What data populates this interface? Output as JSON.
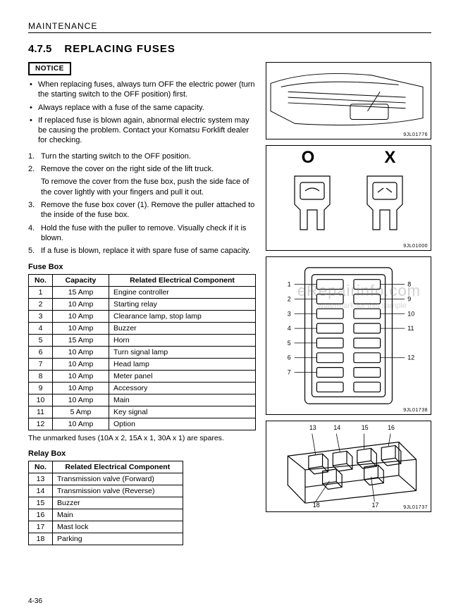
{
  "section_header": "MAINTENANCE",
  "heading_num": "4.7.5",
  "heading_title": "REPLACING FUSES",
  "notice_label": "NOTICE",
  "notice_bullets": [
    "When replacing fuses, always turn OFF the electric power (turn the starting switch to the OFF position) first.",
    "Always replace with a fuse of the same capacity.",
    "If replaced fuse is blown again, abnormal electric system may be causing the problem. Contact your Komatsu Forklift dealer for checking."
  ],
  "steps": [
    "Turn the starting switch to the OFF position.",
    "Remove the cover on the right side of the lift truck.",
    "Remove the fuse box cover (1). Remove the puller attached to the inside of the fuse box.",
    "Hold the fuse with the puller to remove. Visually check if it is blown.",
    "If a fuse is blown, replace it with spare fuse of same capacity."
  ],
  "step2_sub": "To remove the cover from the fuse box, push the side face of the cover lightly with your fingers and pull it out.",
  "fuse_box_heading": "Fuse Box",
  "fuse_table": {
    "cols": [
      "No.",
      "Capacity",
      "Related Electrical Component"
    ],
    "rows": [
      [
        "1",
        "15 Amp",
        "Engine controller"
      ],
      [
        "2",
        "10 Amp",
        "Starting relay"
      ],
      [
        "3",
        "10 Amp",
        "Clearance lamp, stop lamp"
      ],
      [
        "4",
        "10 Amp",
        "Buzzer"
      ],
      [
        "5",
        "15 Amp",
        "Horn"
      ],
      [
        "6",
        "10 Amp",
        "Turn signal lamp"
      ],
      [
        "7",
        "10 Amp",
        "Head lamp"
      ],
      [
        "8",
        "10 Amp",
        "Meter panel"
      ],
      [
        "9",
        "10 Amp",
        "Accessory"
      ],
      [
        "10",
        "10 Amp",
        "Main"
      ],
      [
        "11",
        "5 Amp",
        "Key signal"
      ],
      [
        "12",
        "10 Amp",
        "Option"
      ]
    ]
  },
  "spares_note": "The unmarked fuses (10A x 2, 15A x 1, 30A x 1) are spares.",
  "relay_box_heading": "Relay Box",
  "relay_table": {
    "cols": [
      "No.",
      "Related Electrical Component"
    ],
    "rows": [
      [
        "13",
        "Transmission valve (Forward)"
      ],
      [
        "14",
        "Transmission valve (Reverse)"
      ],
      [
        "15",
        "Buzzer"
      ],
      [
        "16",
        "Main"
      ],
      [
        "17",
        "Mast lock"
      ],
      [
        "18",
        "Parking"
      ]
    ]
  },
  "fig1_label": "9JL01776",
  "fig2_label": "9JL01000",
  "fig3_label": "9JL01738",
  "fig4_label": "9JL01737",
  "ox_o": "O",
  "ox_x": "X",
  "page_num": "4-36",
  "watermark": "eRepairinfo.com",
  "watermark2": "watermark for this sample",
  "fusebox_callouts": [
    "1",
    "2",
    "3",
    "4",
    "5",
    "6",
    "7",
    "8",
    "9",
    "10",
    "11",
    "12"
  ],
  "relaybox_callouts": [
    "13",
    "14",
    "15",
    "16",
    "17",
    "18"
  ],
  "colors": {
    "line": "#000000",
    "bg": "#ffffff"
  }
}
